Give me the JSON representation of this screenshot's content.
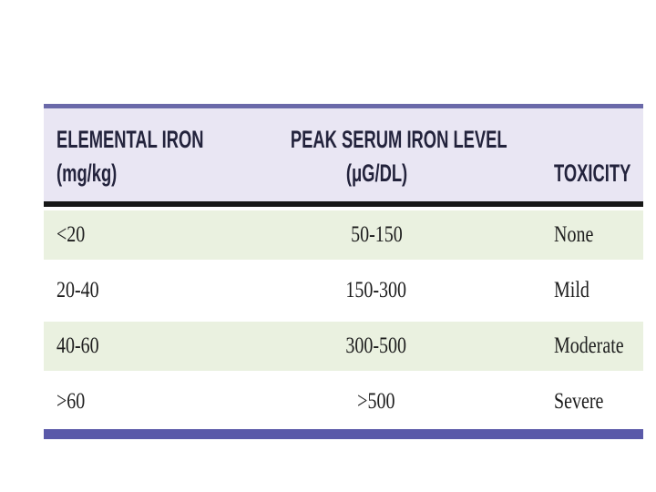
{
  "slide": {
    "background": "#ffffff"
  },
  "table": {
    "columns": [
      {
        "header_line1": "ELEMENTAL IRON",
        "header_line2": "(mg/kg)"
      },
      {
        "header_line1": "PEAK SERUM IRON LEVEL",
        "header_line2": "(μG/DL)"
      },
      {
        "header_line1": "",
        "header_line2": "TOXICITY"
      }
    ],
    "rows": [
      {
        "elemental_iron": "<20",
        "peak_serum": "50-150",
        "toxicity": "None"
      },
      {
        "elemental_iron": "20-40",
        "peak_serum": "150-300",
        "toxicity": "Mild"
      },
      {
        "elemental_iron": "40-60",
        "peak_serum": "300-500",
        "toxicity": "Moderate"
      },
      {
        "elemental_iron": ">60",
        "peak_serum": ">500",
        "toxicity": "Severe"
      }
    ],
    "colors": {
      "header_bg": "#e9e6f3",
      "row_green_bg": "#eaf1e0",
      "row_white_bg": "#ffffff",
      "top_border": "#6a69a9",
      "bottom_border": "#5a59a9",
      "header_separator": "#171717",
      "header_text": "#23233c",
      "body_text": "#1d1d1d"
    }
  }
}
